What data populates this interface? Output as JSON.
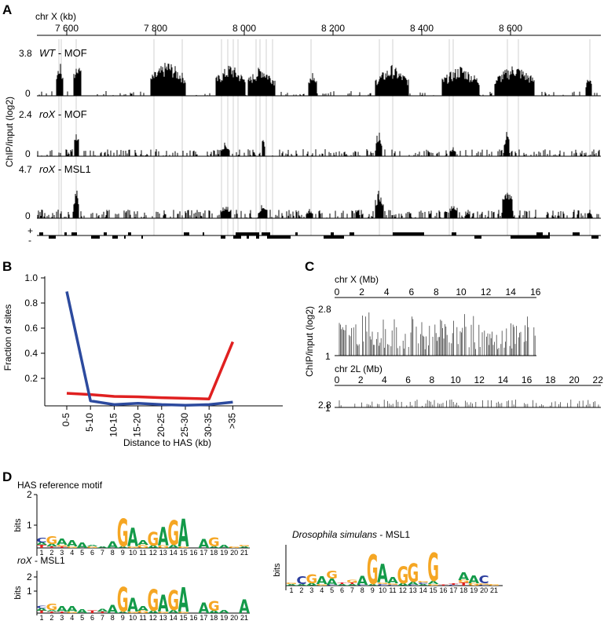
{
  "figure": {
    "panels": [
      "A",
      "B",
      "C",
      "D"
    ],
    "panel_a": {
      "axis_label": "chr X (kb)",
      "ticks": [
        "7 600",
        "7 800",
        "8 000",
        "8 200",
        "8 400",
        "8 600"
      ],
      "tracks": [
        {
          "genotype": "WT",
          "protein": " - MOF",
          "ymax": "3.8",
          "ymin": "0"
        },
        {
          "genotype": "roX",
          "protein": " - MOF",
          "ymax": "2.4",
          "ymin": "0"
        },
        {
          "genotype": "roX",
          "protein": " - MSL1",
          "ymax": "4.7",
          "ymin": "0"
        }
      ],
      "ylabel": "ChIP/input (log2)",
      "strand_plus": "+",
      "strand_minus": "-"
    },
    "panel_b": {
      "ylabel": "Fraction of sites",
      "xlabel": "Distance to HAS (kb)",
      "yticks": [
        "1.0",
        "0.8",
        "0.6",
        "0.4",
        "0.2"
      ]
    },
    "panel_c": {
      "ylabel": "ChIP/input (log2)",
      "tracks": [
        {
          "axis_label": "chr X (Mb)",
          "ticks": [
            "0",
            "2",
            "4",
            "6",
            "8",
            "10",
            "12",
            "14",
            "16"
          ],
          "ymax": "2.8",
          "ymin": "1"
        },
        {
          "axis_label": "chr 2L (Mb)",
          "ticks": [
            "0",
            "2",
            "4",
            "6",
            "8",
            "10",
            "12",
            "14",
            "16",
            "18",
            "20",
            "22"
          ],
          "ymax": "2.8",
          "ymin": "1"
        }
      ]
    },
    "panel_d": {
      "logos": [
        {
          "title": "HAS reference motif",
          "title_italic": "",
          "title_rest": ""
        },
        {
          "title": "",
          "title_italic": "roX",
          "title_rest": " - MSL1"
        },
        {
          "title": "",
          "title_italic": "Drosophila simulans",
          "title_rest": " - MSL1"
        }
      ],
      "ylabel": "bits",
      "yticks": [
        "2",
        "1",
        "0"
      ],
      "positions_21": [
        "1",
        "2",
        "3",
        "4",
        "5",
        "6",
        "7",
        "8",
        "9",
        "10",
        "11",
        "12",
        "13",
        "14",
        "15",
        "16",
        "17",
        "18",
        "19",
        "20",
        "21"
      ],
      "positions_20": [
        "1",
        "2",
        "3",
        "4",
        "5",
        "6",
        "7",
        "8",
        "9",
        "10",
        "11",
        "12",
        "13",
        "14",
        "15",
        "16",
        "17",
        "18",
        "19",
        "20",
        "21"
      ]
    }
  },
  "chart_data": [
    {
      "type": "line",
      "panel": "B",
      "categories": [
        "0-5",
        "5-10",
        "10-15",
        "15-20",
        "20-25",
        "25-30",
        "30-35",
        ">35"
      ],
      "series": [
        {
          "color": "#2c4a9e",
          "values": [
            0.91,
            0.04,
            0.01,
            0.02,
            0.01,
            0.005,
            0.01,
            0.03
          ]
        },
        {
          "color": "#e02020",
          "values": [
            0.1,
            0.09,
            0.075,
            0.072,
            0.065,
            0.06,
            0.055,
            0.51
          ]
        }
      ],
      "ylim": [
        0.0,
        1.0
      ],
      "xlabel": "Distance to HAS (kb)",
      "ylabel": "Fraction of sites"
    }
  ],
  "colors": {
    "A": "#139a49",
    "C": "#2c3e9e",
    "G": "#f5a623",
    "T": "#e02020",
    "guide": "#d0d0d0",
    "signal": "#000000"
  }
}
